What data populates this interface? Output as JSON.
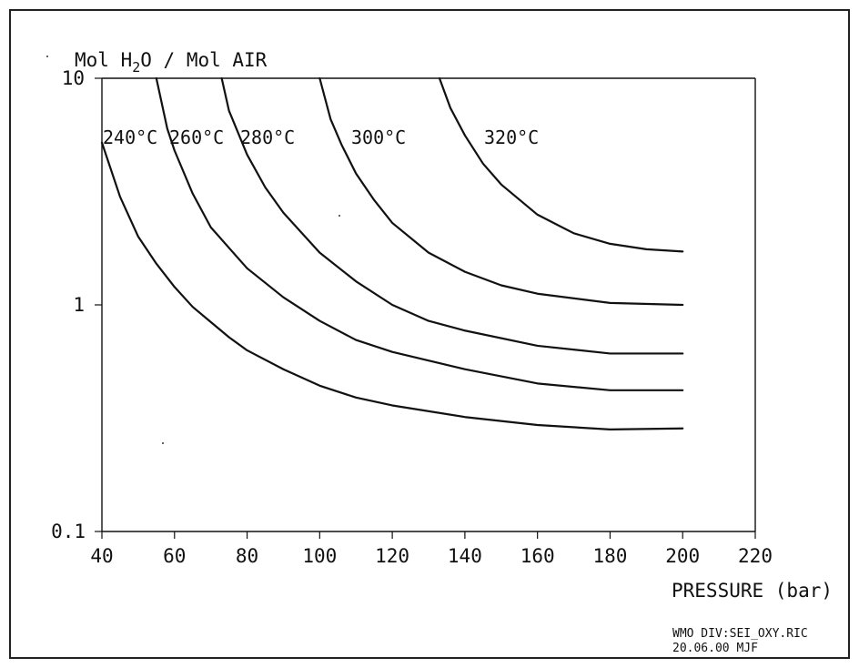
{
  "chart_data": {
    "type": "line",
    "ylabel": "Mol H2O / Mol AIR",
    "ylabel_parts": {
      "before": "Mol H",
      "subscript": "2",
      "after": "O / Mol AIR"
    },
    "xlabel": "PRESSURE (bar)",
    "xlim": [
      40,
      220
    ],
    "ylim": [
      0.1,
      10
    ],
    "y_scale": "log",
    "grid": false,
    "x_ticks": [
      "40",
      "60",
      "80",
      "100",
      "120",
      "140",
      "160",
      "180",
      "200",
      "220"
    ],
    "y_ticks": [
      "10",
      "1",
      "0.1"
    ],
    "series": [
      {
        "name": "240°C",
        "x": [
          40,
          45,
          50,
          55,
          60,
          65,
          70,
          75,
          80,
          90,
          100,
          110,
          120,
          140,
          160,
          180,
          200
        ],
        "y": [
          5.2,
          3.0,
          2.0,
          1.52,
          1.2,
          0.98,
          0.84,
          0.72,
          0.63,
          0.52,
          0.44,
          0.39,
          0.36,
          0.32,
          0.295,
          0.282,
          0.285
        ]
      },
      {
        "name": "260°C",
        "x": [
          55,
          58,
          60,
          65,
          70,
          80,
          90,
          100,
          110,
          120,
          140,
          160,
          180,
          200
        ],
        "y": [
          10,
          6.0,
          4.8,
          3.1,
          2.2,
          1.45,
          1.08,
          0.85,
          0.7,
          0.62,
          0.52,
          0.45,
          0.42,
          0.42
        ]
      },
      {
        "name": "280°C",
        "x": [
          73,
          75,
          80,
          85,
          90,
          100,
          110,
          120,
          130,
          140,
          160,
          180,
          200
        ],
        "y": [
          10,
          7.2,
          4.6,
          3.3,
          2.55,
          1.7,
          1.27,
          1.0,
          0.85,
          0.77,
          0.66,
          0.61,
          0.61
        ]
      },
      {
        "name": "300°C",
        "x": [
          100,
          103,
          106,
          110,
          115,
          120,
          130,
          140,
          150,
          160,
          180,
          200
        ],
        "y": [
          10,
          6.6,
          5.1,
          3.8,
          2.9,
          2.3,
          1.7,
          1.4,
          1.22,
          1.12,
          1.02,
          1.0
        ]
      },
      {
        "name": "320°C",
        "x": [
          133,
          136,
          140,
          145,
          150,
          160,
          170,
          180,
          190,
          200
        ],
        "y": [
          10,
          7.4,
          5.6,
          4.2,
          3.4,
          2.5,
          2.07,
          1.86,
          1.76,
          1.72
        ]
      }
    ],
    "annotations": [
      "240°C",
      "260°C",
      "280°C",
      "300°C",
      "320°C"
    ]
  },
  "footer": {
    "line1": "WMO DIV:SEI_OXY.RIC",
    "line2": "20.06.00 MJF"
  }
}
